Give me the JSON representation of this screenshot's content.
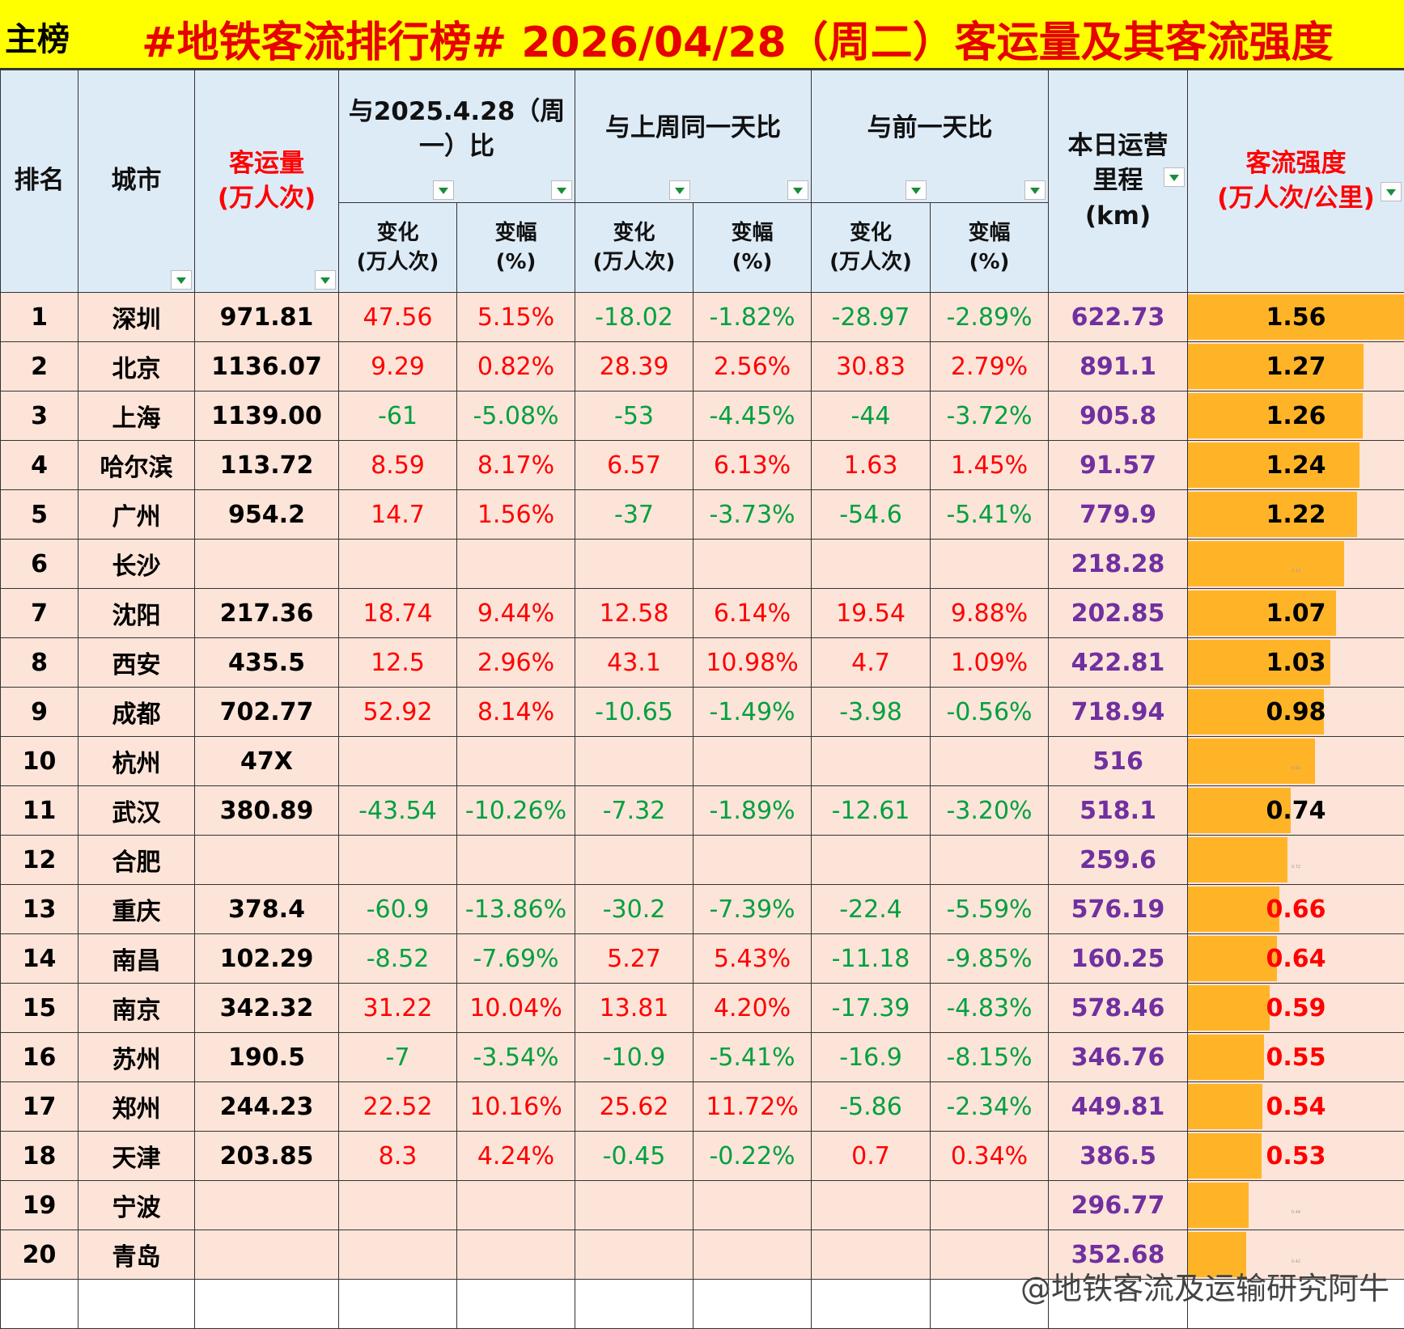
{
  "header": {
    "tag": "主榜",
    "title": "#地铁客流排行榜# 2026/04/28（周二）客运量及其客流强度"
  },
  "columns": {
    "rank": "排名",
    "city": "城市",
    "volume": [
      "客运量",
      "(万人次)"
    ],
    "groups": [
      "与2025.4.28（周",
      "一）比",
      "与上周同一天比",
      "与前一天比"
    ],
    "change": [
      "变化",
      "(万人次)"
    ],
    "pct": [
      "变幅",
      "(%)"
    ],
    "mileage": [
      "本日运营",
      "里程",
      "(km)"
    ],
    "intensity": [
      "客流强度",
      "(万人次/公里)"
    ]
  },
  "table": {
    "rows": [
      [
        1,
        "深圳",
        "971.81",
        47.56,
        "5.15%",
        -18.02,
        "-1.82%",
        -28.97,
        "-2.89%",
        "622.73",
        "1.56"
      ],
      [
        2,
        "北京",
        "1136.07",
        9.29,
        "0.82%",
        28.39,
        "2.56%",
        30.83,
        "2.79%",
        "891.1",
        "1.27"
      ],
      [
        3,
        "上海",
        "1139.00",
        -61,
        "-5.08%",
        -53,
        "-4.45%",
        -44,
        "-3.72%",
        "905.8",
        "1.26"
      ],
      [
        4,
        "哈尔滨",
        "113.72",
        8.59,
        "8.17%",
        6.57,
        "6.13%",
        1.63,
        "1.45%",
        "91.57",
        "1.24"
      ],
      [
        5,
        "广州",
        "954.2",
        14.7,
        "1.56%",
        -37,
        "-3.73%",
        -54.6,
        "-5.41%",
        "779.9",
        "1.22"
      ],
      [
        6,
        "长沙",
        null,
        null,
        null,
        null,
        null,
        null,
        null,
        "218.28",
        "1.13"
      ],
      [
        7,
        "沈阳",
        "217.36",
        18.74,
        "9.44%",
        12.58,
        "6.14%",
        19.54,
        "9.88%",
        "202.85",
        "1.07"
      ],
      [
        8,
        "西安",
        "435.5",
        12.5,
        "2.96%",
        43.1,
        "10.98%",
        4.7,
        "1.09%",
        "422.81",
        "1.03"
      ],
      [
        9,
        "成都",
        "702.77",
        52.92,
        "8.14%",
        -10.65,
        "-1.49%",
        -3.98,
        "-0.56%",
        "718.94",
        "0.98"
      ],
      [
        10,
        "杭州",
        "47X",
        null,
        null,
        null,
        null,
        null,
        null,
        "516",
        "0.92"
      ],
      [
        11,
        "武汉",
        "380.89",
        -43.54,
        "-10.26%",
        -7.32,
        "-1.89%",
        -12.61,
        "-3.20%",
        "518.1",
        "0.74"
      ],
      [
        12,
        "合肥",
        null,
        null,
        null,
        null,
        null,
        null,
        null,
        "259.6",
        "0.72"
      ],
      [
        13,
        "重庆",
        "378.4",
        -60.9,
        "-13.86%",
        -30.2,
        "-7.39%",
        -22.4,
        "-5.59%",
        "576.19",
        "0.66"
      ],
      [
        14,
        "南昌",
        "102.29",
        -8.52,
        "-7.69%",
        5.27,
        "5.43%",
        -11.18,
        "-9.85%",
        "160.25",
        "0.64"
      ],
      [
        15,
        "南京",
        "342.32",
        31.22,
        "10.04%",
        13.81,
        "4.20%",
        -17.39,
        "-4.83%",
        "578.46",
        "0.59"
      ],
      [
        16,
        "苏州",
        "190.5",
        -7,
        "-3.54%",
        -10.9,
        "-5.41%",
        -16.9,
        "-8.15%",
        "346.76",
        "0.55"
      ],
      [
        17,
        "郑州",
        "244.23",
        22.52,
        "10.16%",
        25.62,
        "11.72%",
        -5.86,
        "-2.34%",
        "449.81",
        "0.54"
      ],
      [
        18,
        "天津",
        "203.85",
        8.3,
        "4.24%",
        -0.45,
        "-0.22%",
        0.7,
        "0.34%",
        "386.5",
        "0.53"
      ],
      [
        19,
        "宁波",
        null,
        null,
        null,
        null,
        null,
        null,
        null,
        "296.77",
        "0.44"
      ],
      [
        20,
        "青岛",
        null,
        null,
        null,
        null,
        null,
        null,
        null,
        "352.68",
        "0.42"
      ]
    ]
  },
  "footer": {
    "watermark": "@地铁客流及运输研究阿牛"
  }
}
